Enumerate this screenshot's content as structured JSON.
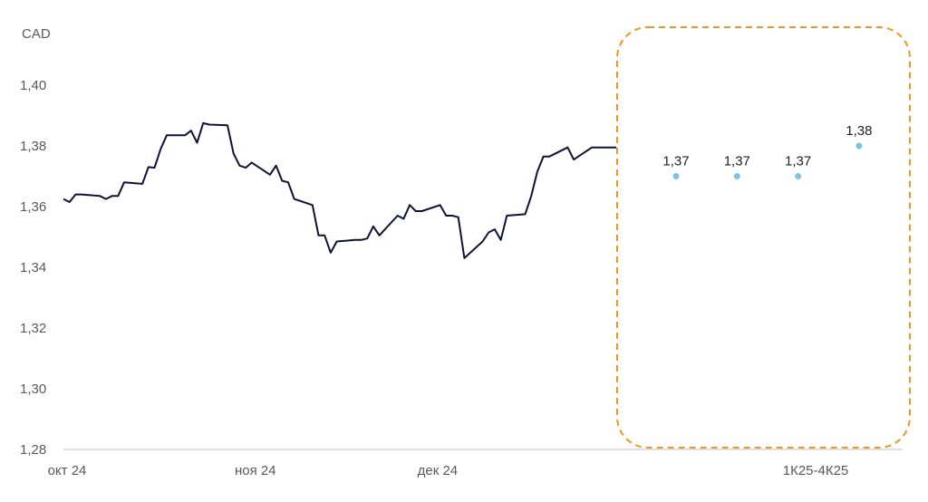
{
  "chart_data": {
    "type": "line",
    "unit_label": "CAD",
    "ylim": [
      1.28,
      1.4
    ],
    "yticks": [
      {
        "value": 1.28,
        "label": "1,28"
      },
      {
        "value": 1.3,
        "label": "1,30"
      },
      {
        "value": 1.32,
        "label": "1,32"
      },
      {
        "value": 1.34,
        "label": "1,34"
      },
      {
        "value": 1.36,
        "label": "1,36"
      },
      {
        "value": 1.38,
        "label": "1,38"
      },
      {
        "value": 1.4,
        "label": "1,40"
      }
    ],
    "xlabels": [
      "окт 24",
      "ноя 24",
      "дек 24",
      "1К25-4К25"
    ],
    "grid": false,
    "colors": {
      "line": "#0f1238",
      "forecast": "#7ec3e6",
      "highlight": "#f0961e",
      "axis": "#bfbfbf"
    },
    "series": [
      {
        "kind": "historical",
        "x": [
          "2024-10-01",
          "2024-10-02",
          "2024-10-03",
          "2024-10-04",
          "2024-10-07",
          "2024-10-08",
          "2024-10-09",
          "2024-10-10",
          "2024-10-11",
          "2024-10-14",
          "2024-10-15",
          "2024-10-16",
          "2024-10-17",
          "2024-10-18",
          "2024-10-21",
          "2024-10-22",
          "2024-10-23",
          "2024-10-24",
          "2024-10-25",
          "2024-10-28",
          "2024-10-29",
          "2024-10-30",
          "2024-10-31",
          "2024-11-01",
          "2024-11-04",
          "2024-11-05",
          "2024-11-06",
          "2024-11-07",
          "2024-11-08",
          "2024-11-11",
          "2024-11-12",
          "2024-11-13",
          "2024-11-14",
          "2024-11-15",
          "2024-11-18",
          "2024-11-19",
          "2024-11-20",
          "2024-11-21",
          "2024-11-22",
          "2024-11-25",
          "2024-11-26",
          "2024-11-27",
          "2024-11-28",
          "2024-11-29",
          "2024-12-02",
          "2024-12-03",
          "2024-12-04",
          "2024-12-05",
          "2024-12-06",
          "2024-12-09",
          "2024-12-10",
          "2024-12-11",
          "2024-12-12",
          "2024-12-13",
          "2024-12-16",
          "2024-12-17",
          "2024-12-18",
          "2024-12-19",
          "2024-12-20",
          "2024-12-23",
          "2024-12-24",
          "2024-12-27",
          "2024-12-30",
          "2024-12-31"
        ],
        "values": [
          1.3625,
          1.3615,
          1.364,
          1.364,
          1.3635,
          1.3625,
          1.3635,
          1.3635,
          1.368,
          1.3675,
          1.373,
          1.3728,
          1.379,
          1.3835,
          1.3835,
          1.385,
          1.381,
          1.3875,
          1.387,
          1.3868,
          1.3775,
          1.3735,
          1.3728,
          1.3745,
          1.3705,
          1.3735,
          1.3685,
          1.368,
          1.3625,
          1.3605,
          1.3505,
          1.3505,
          1.3448,
          1.3485,
          1.349,
          1.349,
          1.3495,
          1.3535,
          1.3505,
          1.357,
          1.356,
          1.3605,
          1.3585,
          1.3585,
          1.3605,
          1.357,
          1.357,
          1.3565,
          1.343,
          1.3485,
          1.3515,
          1.3525,
          1.349,
          1.357,
          1.3575,
          1.3635,
          1.3715,
          1.3765,
          1.3765,
          1.3795,
          1.3755,
          1.3795,
          1.3795,
          1.3795
        ]
      },
      {
        "kind": "forecast",
        "x": [
          "1К25",
          "2К25",
          "3К25",
          "4К25"
        ],
        "values": [
          1.37,
          1.37,
          1.37,
          1.38
        ],
        "labels": [
          "1,37",
          "1,37",
          "1,37",
          "1,38"
        ]
      }
    ]
  }
}
